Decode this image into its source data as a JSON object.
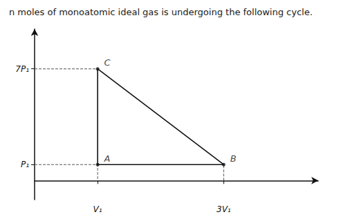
{
  "chart_data": {
    "type": "line",
    "title": "n moles of monoatomic ideal gas is undergoing the following cycle.",
    "series": [
      {
        "color": "#111111",
        "line_style": "solid",
        "x": [
          1,
          1,
          3,
          1
        ],
        "values": [
          7,
          1,
          1,
          7
        ]
      },
      {
        "color": "#555555",
        "line_style": "dashed",
        "x": [
          0,
          1,
          null,
          0,
          1,
          1,
          null,
          3,
          3
        ],
        "values": [
          7,
          7,
          null,
          1,
          1,
          0,
          null,
          0,
          1
        ]
      }
    ],
    "annotations": [
      {
        "text": "A",
        "x": 1,
        "y": 1
      },
      {
        "text": "B",
        "x": 3,
        "y": 1
      },
      {
        "text": "C",
        "x": 1,
        "y": 7
      }
    ],
    "xlim": [
      0,
      4.5
    ],
    "ylim": [
      -1.2,
      9.5
    ],
    "xticks": [
      {
        "value": 1,
        "label": "V₁"
      },
      {
        "value": 3,
        "label": "3V₁"
      }
    ],
    "yticks": [
      {
        "value": 1,
        "label": "P₁"
      },
      {
        "value": 7,
        "label": "7P₁"
      }
    ],
    "grid": false
  }
}
